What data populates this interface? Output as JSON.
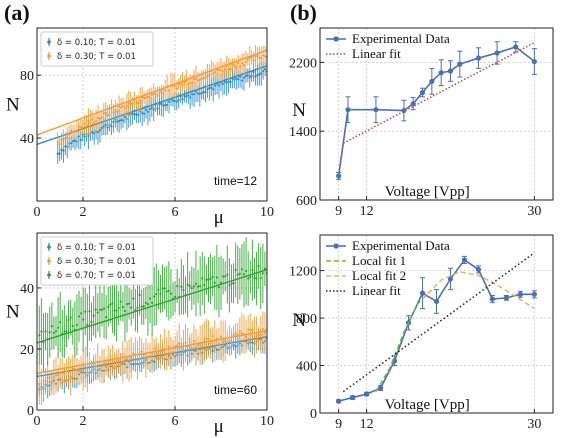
{
  "panel_labels": [
    "(a)",
    "(b)"
  ],
  "chart_data": [
    {
      "id": "a-top",
      "type": "scatter",
      "xlabel": "μ",
      "ylabel": "N",
      "xlim": [
        0,
        10
      ],
      "ylim": [
        0,
        110
      ],
      "xticks": [
        0,
        2,
        6,
        10
      ],
      "yticks": [
        40,
        80
      ],
      "annotation": "time=12",
      "grid": true,
      "legend_position": "top-left",
      "series": [
        {
          "name": "δ = 0.10; T = 0.01",
          "color": "#2a8cc4",
          "x_range": [
            0.9,
            10
          ],
          "y0": 30,
          "y1": 83,
          "err": 6,
          "fit": [
            [
              0,
              36
            ],
            [
              10,
              86
            ]
          ]
        },
        {
          "name": "δ = 0.30; T = 0.01",
          "color": "#f29a3a",
          "x_range": [
            0.9,
            10
          ],
          "y0": 36,
          "y1": 93,
          "err": 6,
          "fit": [
            [
              0,
              42
            ],
            [
              10,
              96
            ]
          ]
        }
      ]
    },
    {
      "id": "a-bottom",
      "type": "scatter",
      "xlabel": "μ",
      "ylabel": "N",
      "xlim": [
        0,
        10
      ],
      "ylim": [
        0,
        58
      ],
      "xticks": [
        0,
        2,
        6,
        10
      ],
      "yticks": [
        0,
        20,
        40
      ],
      "annotation": "time=60",
      "grid": true,
      "legend_position": "top-left",
      "series": [
        {
          "name": "δ = 0.10; T = 0.01",
          "color": "#2a8cc4",
          "x_range": [
            0.1,
            10
          ],
          "y0": 7,
          "y1": 23,
          "err": 3,
          "fit": [
            [
              0,
              11
            ],
            [
              10,
              24
            ]
          ]
        },
        {
          "name": "δ = 0.30; T = 0.01",
          "color": "#f29a3a",
          "x_range": [
            0.1,
            10
          ],
          "y0": 8,
          "y1": 26,
          "err": 5,
          "fit": [
            [
              0,
              12
            ],
            [
              10,
              26
            ]
          ]
        },
        {
          "name": "δ = 0.70; T = 0.01",
          "color": "#2ca02c",
          "x_range": [
            0.1,
            10
          ],
          "y0": 23,
          "y1": 46,
          "err": 8,
          "fit": [
            [
              0,
              22
            ],
            [
              10,
              46
            ]
          ]
        }
      ]
    },
    {
      "id": "b-top",
      "type": "line",
      "xlabel": "Voltage [Vpp]",
      "ylabel": "N",
      "xlim": [
        7,
        32
      ],
      "ylim": [
        600,
        2600
      ],
      "xticks": [
        9,
        12,
        30
      ],
      "yticks": [
        600,
        1400,
        2200
      ],
      "grid": true,
      "legend_position": "top-left",
      "x": [
        9,
        10,
        13,
        16,
        17,
        18,
        19,
        20,
        21,
        22,
        24,
        26,
        28,
        30
      ],
      "series": [
        {
          "name": "Experimental Data",
          "color": "#4a6fb5",
          "values": [
            880,
            1650,
            1650,
            1640,
            1720,
            1850,
            1980,
            2080,
            2100,
            2180,
            2250,
            2310,
            2380,
            2210
          ],
          "err": [
            40,
            150,
            150,
            120,
            70,
            50,
            150,
            150,
            120,
            150,
            120,
            130,
            60,
            150
          ]
        },
        {
          "name": "Linear fit",
          "color": "#e03a3a",
          "line": [
            [
              9.5,
              1260
            ],
            [
              30,
              2430
            ]
          ]
        }
      ]
    },
    {
      "id": "b-bottom",
      "type": "line",
      "xlabel": "Voltage [Vpp]",
      "ylabel": "N",
      "xlim": [
        7,
        32
      ],
      "ylim": [
        0,
        1500
      ],
      "xticks": [
        9,
        12,
        30
      ],
      "yticks": [
        0,
        400,
        800,
        1200
      ],
      "grid": true,
      "legend_position": "top-left",
      "x": [
        9,
        10.5,
        12,
        13.5,
        15,
        16.5,
        18,
        19.5,
        21,
        22.5,
        24,
        25.5,
        27,
        28.5,
        30
      ],
      "series": [
        {
          "name": "Experimental Data",
          "color": "#4a6fb5",
          "values": [
            100,
            130,
            160,
            210,
            440,
            760,
            1010,
            940,
            1130,
            1290,
            1210,
            960,
            970,
            1000,
            1000
          ],
          "err": [
            10,
            15,
            15,
            20,
            40,
            60,
            130,
            100,
            90,
            30,
            30,
            30,
            20,
            25,
            30
          ]
        },
        {
          "name": "Local fit 1",
          "color": "#7ab83a",
          "line": [
            [
              13,
              180
            ],
            [
              14.5,
              380
            ],
            [
              16,
              680
            ],
            [
              17.5,
              920
            ],
            [
              19,
              1040
            ]
          ]
        },
        {
          "name": "Local fit 2",
          "color": "#f0b060",
          "line": [
            [
              18,
              960
            ],
            [
              20,
              1120
            ],
            [
              22,
              1190
            ],
            [
              24,
              1160
            ],
            [
              26,
              1080
            ],
            [
              28,
              980
            ],
            [
              30,
              880
            ]
          ]
        },
        {
          "name": "Linear fit",
          "color": "#222222",
          "line": [
            [
              9.5,
              180
            ],
            [
              30,
              1350
            ]
          ]
        }
      ]
    }
  ]
}
